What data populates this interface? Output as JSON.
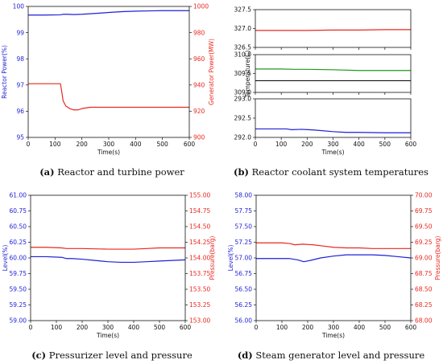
{
  "colors": {
    "blue": "#1f1fd6",
    "red": "#e8281f",
    "green": "#1e9a1e",
    "black": "#111111"
  },
  "captions": {
    "a": {
      "tag": "(a)",
      "text": "Reactor and turbine power"
    },
    "b": {
      "tag": "(b)",
      "text": "Reactor coolant system temperatures"
    },
    "c": {
      "tag": "(c)",
      "text": "Pressurizer level and pressure"
    },
    "d": {
      "tag": "(d)",
      "text": "Steam generator level and pressure"
    }
  },
  "chart_data": [
    {
      "id": "a",
      "type": "line",
      "xlabel": "Time(s)",
      "xlim": [
        0,
        600
      ],
      "xticks": [
        0,
        100,
        200,
        300,
        400,
        500,
        600
      ],
      "ylabel": "Reactor Power(%)",
      "ylim": [
        95,
        100
      ],
      "yticks": [
        95,
        96,
        97,
        98,
        99,
        100
      ],
      "ytick_labels": [
        "95",
        "96",
        "97",
        "98",
        "99",
        "100"
      ],
      "y2label": "Generator Power(MW)",
      "y2lim": [
        900,
        1000
      ],
      "y2ticks": [
        900,
        920,
        940,
        960,
        980,
        1000
      ],
      "y2tick_labels": [
        "900",
        "920",
        "940",
        "960",
        "980",
        "1000"
      ],
      "series": [
        {
          "axis": "left",
          "color": "blue",
          "x": [
            0,
            60,
            120,
            130,
            145,
            170,
            200,
            230,
            260,
            300,
            350,
            400,
            450,
            500,
            600
          ],
          "y": [
            99.67,
            99.67,
            99.68,
            99.7,
            99.7,
            99.69,
            99.7,
            99.72,
            99.74,
            99.77,
            99.8,
            99.82,
            99.83,
            99.84,
            99.84
          ]
        },
        {
          "axis": "right",
          "color": "red",
          "x": [
            0,
            60,
            120,
            125,
            130,
            140,
            155,
            170,
            185,
            200,
            230,
            260,
            300,
            400,
            500,
            600
          ],
          "y": [
            941,
            941,
            941,
            935,
            928,
            924,
            922,
            921,
            921,
            922,
            923,
            923,
            923,
            923,
            923,
            923
          ]
        }
      ]
    },
    {
      "id": "b1",
      "type": "line",
      "xlim": [
        0,
        600
      ],
      "xticks": [
        0,
        100,
        200,
        300,
        400,
        500,
        600
      ],
      "ylim": [
        326.5,
        327.5
      ],
      "yticks": [
        326.5,
        327.0,
        327.5
      ],
      "ytick_labels": [
        "326.5",
        "327.0",
        "327.5"
      ],
      "series": [
        {
          "axis": "left",
          "color": "red",
          "x": [
            0,
            100,
            200,
            300,
            400,
            500,
            600
          ],
          "y": [
            326.95,
            326.95,
            326.95,
            326.96,
            326.96,
            326.97,
            326.97
          ]
        }
      ]
    },
    {
      "id": "b2",
      "type": "line",
      "ylabel": "Temperature(C)",
      "xlim": [
        0,
        600
      ],
      "xticks": [
        0,
        100,
        200,
        300,
        400,
        500,
        600
      ],
      "ylim": [
        309.0,
        310.0
      ],
      "yticks": [
        309.0,
        309.5,
        310.0
      ],
      "ytick_labels": [
        "309.0",
        "309.5",
        "310.0"
      ],
      "series": [
        {
          "axis": "left",
          "color": "green",
          "x": [
            0,
            100,
            150,
            200,
            300,
            400,
            500,
            600
          ],
          "y": [
            309.62,
            309.62,
            309.61,
            309.61,
            309.6,
            309.58,
            309.58,
            309.58
          ]
        },
        {
          "axis": "left",
          "color": "black",
          "x": [
            0,
            600
          ],
          "y": [
            309.31,
            309.31
          ]
        }
      ]
    },
    {
      "id": "b3",
      "type": "line",
      "xlabel": "Time(s)",
      "xlim": [
        0,
        600
      ],
      "xticks": [
        0,
        100,
        200,
        300,
        400,
        500,
        600
      ],
      "ylim": [
        292.0,
        293.0
      ],
      "yticks": [
        292.0,
        292.5,
        293.0
      ],
      "ytick_labels": [
        "292.0",
        "292.5",
        "293.0"
      ],
      "series": [
        {
          "axis": "left",
          "color": "blue",
          "x": [
            0,
            120,
            140,
            180,
            230,
            300,
            350,
            400,
            500,
            600
          ],
          "y": [
            292.22,
            292.22,
            292.2,
            292.21,
            292.19,
            292.15,
            292.13,
            292.13,
            292.12,
            292.12
          ]
        }
      ]
    },
    {
      "id": "c",
      "type": "line",
      "xlabel": "Time(s)",
      "xlim": [
        0,
        600
      ],
      "xticks": [
        0,
        100,
        200,
        300,
        400,
        500,
        600
      ],
      "ylabel": "Level(%)",
      "ylim": [
        59.0,
        61.0
      ],
      "yticks": [
        59.0,
        59.25,
        59.5,
        59.75,
        60.0,
        60.25,
        60.5,
        60.75,
        61.0
      ],
      "ytick_labels": [
        "59.00",
        "59.25",
        "59.50",
        "59.75",
        "60.00",
        "60.25",
        "60.50",
        "60.75",
        "61.00"
      ],
      "y2label": "Pressure(barg)",
      "y2lim": [
        153.0,
        155.0
      ],
      "y2ticks": [
        153.0,
        153.25,
        153.5,
        153.75,
        154.0,
        154.25,
        154.5,
        154.75,
        155.0
      ],
      "y2tick_labels": [
        "153.00",
        "153.25",
        "153.50",
        "153.75",
        "154.00",
        "154.25",
        "154.50",
        "154.75",
        "155.00"
      ],
      "series": [
        {
          "axis": "left",
          "color": "blue",
          "x": [
            0,
            60,
            120,
            140,
            160,
            200,
            250,
            300,
            350,
            400,
            450,
            500,
            550,
            600
          ],
          "y": [
            60.02,
            60.02,
            60.01,
            59.99,
            59.99,
            59.98,
            59.96,
            59.94,
            59.93,
            59.93,
            59.94,
            59.95,
            59.96,
            59.97
          ]
        },
        {
          "axis": "right",
          "color": "red",
          "x": [
            0,
            60,
            120,
            140,
            200,
            300,
            400,
            450,
            500,
            600
          ],
          "y": [
            154.17,
            154.17,
            154.16,
            154.15,
            154.15,
            154.14,
            154.14,
            154.15,
            154.16,
            154.16
          ]
        }
      ]
    },
    {
      "id": "d",
      "type": "line",
      "xlabel": "Time(s)",
      "xlim": [
        0,
        600
      ],
      "xticks": [
        0,
        100,
        200,
        300,
        400,
        500,
        600
      ],
      "ylabel": "Level(%)",
      "ylim": [
        56.0,
        58.0
      ],
      "yticks": [
        56.0,
        56.25,
        56.5,
        56.75,
        57.0,
        57.25,
        57.5,
        57.75,
        58.0
      ],
      "ytick_labels": [
        "56.00",
        "56.25",
        "56.50",
        "56.75",
        "57.00",
        "57.25",
        "57.50",
        "57.75",
        "58.00"
      ],
      "y2label": "Pressure(barg)",
      "y2lim": [
        68.0,
        70.0
      ],
      "y2ticks": [
        68.0,
        68.25,
        68.5,
        68.75,
        69.0,
        69.25,
        69.5,
        69.75,
        70.0
      ],
      "y2tick_labels": [
        "68.00",
        "68.25",
        "68.50",
        "68.75",
        "69.00",
        "69.25",
        "69.50",
        "69.75",
        "70.00"
      ],
      "series": [
        {
          "axis": "left",
          "color": "blue",
          "x": [
            0,
            100,
            130,
            160,
            185,
            210,
            250,
            300,
            350,
            400,
            450,
            500,
            550,
            600
          ],
          "y": [
            56.99,
            56.99,
            56.99,
            56.97,
            56.94,
            56.96,
            57.0,
            57.03,
            57.05,
            57.05,
            57.05,
            57.04,
            57.02,
            57.0
          ]
        },
        {
          "axis": "right",
          "color": "red",
          "x": [
            0,
            100,
            130,
            150,
            180,
            220,
            260,
            300,
            350,
            400,
            450,
            500,
            600
          ],
          "y": [
            69.24,
            69.24,
            69.23,
            69.21,
            69.22,
            69.21,
            69.19,
            69.17,
            69.16,
            69.16,
            69.15,
            69.15,
            69.15
          ]
        }
      ]
    }
  ]
}
